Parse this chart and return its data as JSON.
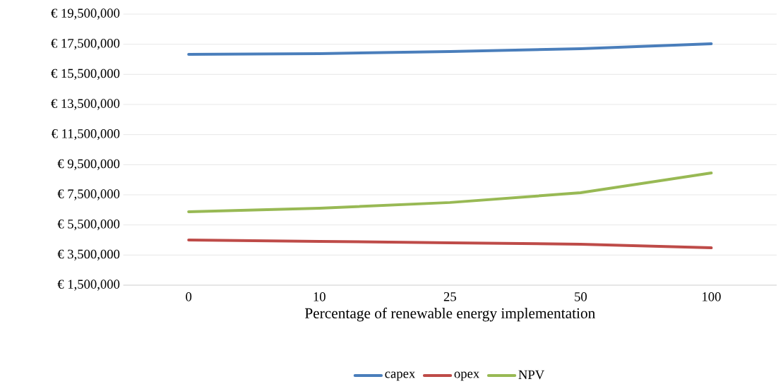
{
  "chart_data": {
    "type": "line",
    "xlabel": "Percentage of renewable energy implementation",
    "categories": [
      "0",
      "10",
      "25",
      "50",
      "100"
    ],
    "series": [
      {
        "name": "capex",
        "color": "#4a7ebb",
        "values": [
          16830000,
          16880000,
          17020000,
          17200000,
          17530000
        ]
      },
      {
        "name": "opex",
        "color": "#be4b48",
        "values": [
          4500000,
          4410000,
          4310000,
          4220000,
          3980000
        ]
      },
      {
        "name": "NPV",
        "color": "#98b954",
        "values": [
          6380000,
          6610000,
          6990000,
          7640000,
          8950000
        ]
      }
    ],
    "ylim": [
      1500000,
      19500000
    ],
    "yticks": [
      {
        "value": 1500000,
        "label": "€ 1,500,000"
      },
      {
        "value": 3500000,
        "label": "€ 3,500,000"
      },
      {
        "value": 5500000,
        "label": "€ 5,500,000"
      },
      {
        "value": 7500000,
        "label": "€ 7,500,000"
      },
      {
        "value": 9500000,
        "label": "€ 9,500,000"
      },
      {
        "value": 11500000,
        "label": "€ 11,500,000"
      },
      {
        "value": 13500000,
        "label": "€ 13,500,000"
      },
      {
        "value": 15500000,
        "label": "€ 15,500,000"
      },
      {
        "value": 17500000,
        "label": "€ 17,500,000"
      },
      {
        "value": 19500000,
        "label": "€ 19,500,000"
      }
    ],
    "grid": "y",
    "legend": "bottom",
    "marker": "none",
    "line_style": "solid"
  }
}
